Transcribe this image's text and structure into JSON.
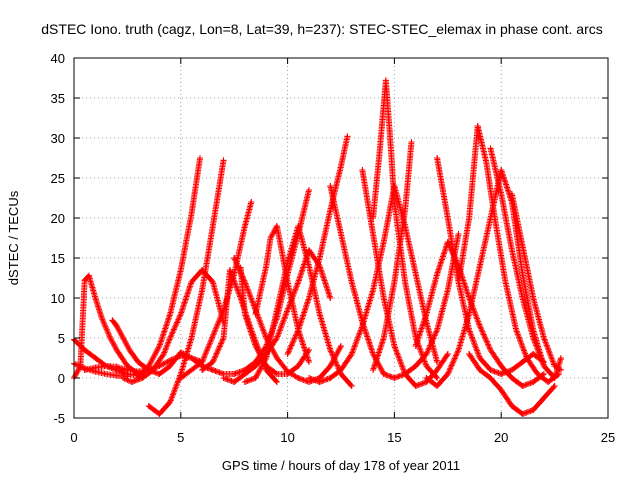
{
  "chart_data": {
    "type": "scatter",
    "title": "dSTEC Iono. truth (cagz, Lon=8, Lat=39, h=237): STEC-STEC_elemax in phase cont. arcs",
    "xlabel": "GPS time / hours of day 178 of year 2011",
    "ylabel": "dSTEC  / TECUs",
    "xlim": [
      0,
      25
    ],
    "ylim": [
      -5,
      40
    ],
    "xticks": [
      0,
      5,
      10,
      15,
      20,
      25
    ],
    "yticks": [
      -5,
      0,
      5,
      10,
      15,
      20,
      25,
      30,
      35,
      40
    ],
    "grid": true,
    "marker": "+",
    "series_color": "#ff0000",
    "series": [
      {
        "x": [
          0.0,
          0.3,
          0.5,
          0.7,
          1.0,
          1.3,
          1.7,
          2.0,
          2.5,
          3.0
        ],
        "y": [
          0.0,
          1.5,
          12.2,
          12.8,
          10.0,
          7.5,
          5.0,
          3.5,
          1.5,
          0.5
        ]
      },
      {
        "x": [
          0.0,
          0.5,
          1.0,
          1.5,
          2.0,
          2.5,
          3.0
        ],
        "y": [
          4.8,
          3.5,
          2.5,
          1.5,
          1.0,
          0.5,
          0.3
        ]
      },
      {
        "x": [
          0.0,
          0.5,
          1.0,
          1.5,
          2.0,
          2.5
        ],
        "y": [
          1.8,
          1.2,
          0.8,
          0.5,
          0.3,
          0.2
        ]
      },
      {
        "x": [
          0.5,
          1.0,
          1.5,
          2.0,
          2.5,
          3.0,
          3.5,
          4.0,
          4.5,
          5.0,
          5.5,
          6.0
        ],
        "y": [
          1.0,
          1.3,
          1.5,
          1.4,
          1.0,
          0.8,
          1.0,
          1.5,
          2.2,
          2.8,
          2.5,
          2.0
        ]
      },
      {
        "x": [
          1.8,
          2.0,
          2.3,
          2.6,
          3.0,
          3.5,
          4.0
        ],
        "y": [
          7.2,
          6.5,
          5.0,
          3.5,
          2.0,
          1.0,
          0.5
        ]
      },
      {
        "x": [
          2.3,
          2.7,
          3.2,
          3.7,
          4.2,
          4.5,
          5.0,
          5.5,
          6.0,
          6.5,
          7.0
        ],
        "y": [
          0.0,
          -0.5,
          0.0,
          1.0,
          3.0,
          5.0,
          8.0,
          12.0,
          13.5,
          12.0,
          7.0
        ]
      },
      {
        "x": [
          3.5,
          4.0,
          4.5,
          5.0,
          5.5,
          6.0,
          6.5,
          7.0
        ],
        "y": [
          -3.5,
          -4.5,
          -3.0,
          0.5,
          5.0,
          11.0,
          19.0,
          27.2
        ]
      },
      {
        "x": [
          3.0,
          3.5,
          4.0,
          4.5,
          5.0,
          5.5,
          5.9
        ],
        "y": [
          0.0,
          1.5,
          4.0,
          8.0,
          13.5,
          20.5,
          27.5
        ]
      },
      {
        "x": [
          4.0,
          4.5,
          5.0,
          5.5,
          6.0,
          6.5,
          7.0,
          7.5,
          8.0,
          8.5,
          9.0,
          9.5,
          10.0,
          10.5,
          11.0
        ],
        "y": [
          0.5,
          1.5,
          3.2,
          2.5,
          1.5,
          1.0,
          0.5,
          0.5,
          1.0,
          2.0,
          4.0,
          7.5,
          13.0,
          18.0,
          23.5
        ]
      },
      {
        "x": [
          5.0,
          6.0,
          7.0,
          7.5,
          8.0,
          8.3
        ],
        "y": [
          0.0,
          2.0,
          8.5,
          13.0,
          19.0,
          22.0
        ]
      },
      {
        "x": [
          6.0,
          6.5,
          7.0,
          7.3,
          7.8,
          8.3,
          9.0,
          9.5
        ],
        "y": [
          1.0,
          2.0,
          5.0,
          13.5,
          10.0,
          6.0,
          1.0,
          -0.5
        ]
      },
      {
        "x": [
          7.0,
          7.5,
          8.0,
          8.5,
          9.0,
          9.5,
          10.0,
          10.5,
          11.0,
          11.5,
          12.0
        ],
        "y": [
          0.0,
          -0.5,
          0.5,
          1.5,
          3.0,
          5.0,
          8.5,
          12.0,
          16.0,
          14.0,
          10.0
        ]
      },
      {
        "x": [
          7.5,
          8.0,
          8.5,
          9.0,
          9.5,
          10.0,
          10.5,
          11.0,
          11.5,
          12.0,
          12.5
        ],
        "y": [
          15.0,
          12.0,
          8.5,
          5.0,
          2.5,
          0.8,
          0.0,
          -0.5,
          0.0,
          1.5,
          4.0
        ]
      },
      {
        "x": [
          7.8,
          8.0,
          8.5,
          9.0,
          9.5,
          10.0,
          10.5,
          11.0
        ],
        "y": [
          13.8,
          8.0,
          4.0,
          1.5,
          0.5,
          0.5,
          1.5,
          3.5
        ]
      },
      {
        "x": [
          8.0,
          8.5,
          9.0,
          9.5,
          10.0,
          10.5,
          11.0,
          11.5,
          12.0,
          12.5,
          13.0
        ],
        "y": [
          -0.5,
          0.0,
          2.5,
          8.5,
          14.5,
          19.0,
          14.0,
          8.0,
          3.5,
          0.5,
          -1.0
        ]
      },
      {
        "x": [
          8.5,
          9.0,
          9.2,
          9.5,
          10.0,
          10.5,
          11.0
        ],
        "y": [
          8.0,
          14.0,
          17.5,
          19.0,
          12.0,
          6.0,
          2.0
        ]
      },
      {
        "x": [
          10.0,
          10.5,
          11.0,
          11.5,
          12.0,
          12.5,
          12.8
        ],
        "y": [
          3.0,
          6.0,
          10.0,
          15.0,
          21.0,
          26.5,
          30.2
        ]
      },
      {
        "x": [
          11.0,
          11.5,
          12.0,
          12.5,
          13.0,
          13.5,
          14.0,
          14.5,
          15.0,
          15.5,
          16.0,
          16.5,
          17.0
        ],
        "y": [
          0.0,
          -0.5,
          0.0,
          1.0,
          3.0,
          6.5,
          11.0,
          17.0,
          24.0,
          19.0,
          13.0,
          7.0,
          2.0
        ]
      },
      {
        "x": [
          12.0,
          12.5,
          13.0,
          13.5,
          14.0,
          14.5,
          15.0,
          15.5,
          16.0,
          16.5,
          17.0,
          17.5,
          18.0
        ],
        "y": [
          24.0,
          18.0,
          12.0,
          7.0,
          3.0,
          0.5,
          0.0,
          0.5,
          1.5,
          3.0,
          6.0,
          11.0,
          18.0
        ]
      },
      {
        "x": [
          13.5,
          14.0,
          14.5,
          15.0,
          15.5,
          16.0,
          16.5,
          17.0,
          17.5
        ],
        "y": [
          26.0,
          18.0,
          10.0,
          4.0,
          0.5,
          -1.0,
          -0.5,
          1.0,
          3.0
        ]
      },
      {
        "x": [
          14.0,
          14.3,
          14.6,
          14.8,
          15.0,
          15.5,
          16.0,
          16.5,
          17.0
        ],
        "y": [
          20.0,
          28.0,
          37.2,
          30.0,
          22.0,
          12.0,
          5.0,
          1.5,
          0.0
        ]
      },
      {
        "x": [
          14.0,
          14.5,
          15.0,
          15.5,
          15.8
        ],
        "y": [
          1.0,
          5.0,
          12.0,
          21.0,
          29.5
        ]
      },
      {
        "x": [
          16.0,
          16.5,
          17.0,
          17.5,
          18.0,
          18.5,
          19.0,
          19.5,
          20.0,
          20.5,
          21.0,
          21.5,
          22.0
        ],
        "y": [
          4.0,
          8.0,
          13.0,
          17.0,
          14.0,
          10.0,
          6.5,
          3.5,
          1.5,
          0.0,
          -1.0,
          -0.5,
          0.5
        ]
      },
      {
        "x": [
          16.5,
          17.0,
          17.5,
          18.0,
          18.5,
          19.0,
          19.5,
          20.0,
          20.5,
          21.0,
          21.5,
          22.0
        ],
        "y": [
          0.0,
          -1.0,
          0.5,
          3.5,
          8.0,
          14.0,
          20.0,
          26.0,
          22.0,
          13.0,
          6.0,
          1.5
        ]
      },
      {
        "x": [
          17.0,
          17.5,
          18.0,
          18.5,
          19.0,
          19.5,
          20.0,
          20.5,
          21.0,
          21.5,
          22.0
        ],
        "y": [
          27.5,
          20.0,
          12.0,
          6.0,
          2.5,
          1.0,
          0.5,
          1.0,
          2.0,
          3.0,
          2.0
        ]
      },
      {
        "x": [
          18.0,
          18.5,
          18.9,
          19.3,
          19.7,
          20.2,
          20.7,
          21.2,
          21.7,
          22.2,
          22.7
        ],
        "y": [
          12.0,
          20.0,
          31.5,
          27.0,
          20.0,
          12.0,
          6.0,
          2.5,
          0.5,
          -0.5,
          0.5
        ]
      },
      {
        "x": [
          19.5,
          20.0,
          20.5,
          21.0,
          21.5,
          22.0,
          22.5,
          22.8
        ],
        "y": [
          28.7,
          23.0,
          16.0,
          10.0,
          5.0,
          1.5,
          0.0,
          2.5
        ]
      },
      {
        "x": [
          18.5,
          19.0,
          19.5,
          20.0,
          20.5,
          21.0,
          21.5,
          22.0,
          22.5
        ],
        "y": [
          3.0,
          1.0,
          0.0,
          -1.5,
          -3.5,
          -4.5,
          -4.0,
          -2.5,
          -1.0
        ]
      },
      {
        "x": [
          20.5,
          21.0,
          21.5,
          22.0,
          22.5,
          22.8
        ],
        "y": [
          23.0,
          16.5,
          10.0,
          5.0,
          1.5,
          1.0
        ]
      }
    ]
  }
}
